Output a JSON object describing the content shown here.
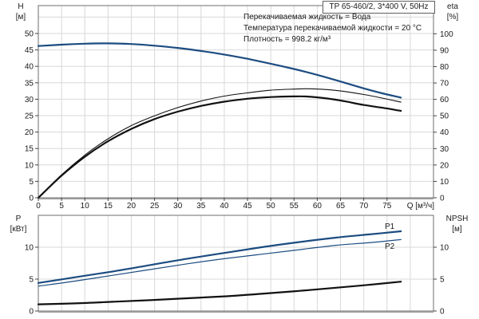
{
  "header": {
    "title": "TP 65-460/2, 3*400 V, 50Hz"
  },
  "info": {
    "line1": "Перекачиваемая жидкость = Вода",
    "line2": "Температура перекачиваемой жидкости = 20 °C",
    "line3": "Плотность = 998.2 кг/м³"
  },
  "labels": {
    "h": "H",
    "h_unit": "[м]",
    "eta": "eta",
    "eta_unit": "[%]",
    "q": "Q [м³/ч]",
    "p": "P",
    "p_unit": "[кВт]",
    "npsh": "NPSH",
    "npsh_unit": "[м]",
    "p1": "P1",
    "p2": "P2"
  },
  "colors": {
    "curve_blue": "#1c4c80",
    "curve_black": "#111111",
    "grid": "#d8d8d8",
    "border": "#6e6e6e",
    "axis_heavy": "#9a9a9a",
    "tick": "#444444",
    "text": "#1a1a1a"
  },
  "chart_data": [
    {
      "type": "line",
      "title": "TP 65-460/2, 3*400 V, 50Hz",
      "xlabel": "Q [м³/ч]",
      "ylabel_left": "H [м]",
      "ylabel_right": "eta [%]",
      "xlim": [
        0,
        85
      ],
      "ylim_left": [
        0,
        58.5
      ],
      "ylim_right": [
        0,
        117.2
      ],
      "grid": true,
      "ticks_x": [
        0,
        5,
        10,
        15,
        20,
        25,
        30,
        35,
        40,
        45,
        50,
        55,
        60,
        65,
        70,
        75
      ],
      "ticks_left": [
        0,
        5,
        10,
        15,
        20,
        25,
        30,
        35,
        40,
        45,
        50
      ],
      "ticks_right": [
        0,
        10,
        20,
        30,
        40,
        50,
        60,
        70,
        80,
        90,
        100
      ],
      "grid_x": [
        5,
        10,
        15,
        20,
        25,
        30,
        35,
        40,
        45,
        50,
        55,
        60,
        65,
        70,
        75,
        80
      ],
      "grid_y_left": [
        5,
        10,
        15,
        20,
        25,
        30,
        35,
        40,
        45,
        50,
        55
      ],
      "series": [
        {
          "name": "H",
          "axis": "left",
          "color": "blue",
          "width": 2.2,
          "points": [
            [
              0,
              46.2
            ],
            [
              5,
              46.6
            ],
            [
              10,
              46.9
            ],
            [
              15,
              47.0
            ],
            [
              20,
              46.8
            ],
            [
              25,
              46.3
            ],
            [
              30,
              45.6
            ],
            [
              35,
              44.7
            ],
            [
              40,
              43.6
            ],
            [
              45,
              42.3
            ],
            [
              50,
              40.8
            ],
            [
              55,
              39.2
            ],
            [
              60,
              37.4
            ],
            [
              65,
              35.4
            ],
            [
              70,
              33.3
            ],
            [
              74,
              31.8
            ],
            [
              78,
              30.5
            ]
          ]
        },
        {
          "name": "eta-thin",
          "axis": "right",
          "color": "black",
          "width": 1.1,
          "points": [
            [
              0,
              0
            ],
            [
              5,
              14
            ],
            [
              10,
              26
            ],
            [
              15,
              36
            ],
            [
              20,
              44
            ],
            [
              25,
              50
            ],
            [
              30,
              55
            ],
            [
              35,
              59
            ],
            [
              40,
              62
            ],
            [
              45,
              64
            ],
            [
              50,
              65.6
            ],
            [
              55,
              66.3
            ],
            [
              58,
              66.5
            ],
            [
              62,
              66
            ],
            [
              66,
              64.8
            ],
            [
              70,
              63
            ],
            [
              74,
              60.8
            ],
            [
              78,
              58.3
            ]
          ]
        },
        {
          "name": "eta-thick",
          "axis": "right",
          "color": "black",
          "width": 2.2,
          "points": [
            [
              0,
              0
            ],
            [
              5,
              13.5
            ],
            [
              10,
              25
            ],
            [
              15,
              34.5
            ],
            [
              20,
              42
            ],
            [
              25,
              48
            ],
            [
              30,
              52.5
            ],
            [
              35,
              56
            ],
            [
              40,
              58.6
            ],
            [
              45,
              60.4
            ],
            [
              50,
              61.4
            ],
            [
              55,
              61.8
            ],
            [
              58,
              61.7
            ],
            [
              62,
              60.6
            ],
            [
              66,
              58.8
            ],
            [
              70,
              56.6
            ],
            [
              74,
              54.9
            ],
            [
              78,
              53
            ]
          ]
        }
      ]
    },
    {
      "type": "line",
      "title": "",
      "xlabel": "",
      "ylabel_left": "P [кВт]",
      "ylabel_right": "NPSH [м]",
      "xlim": [
        0,
        85
      ],
      "ylim_left": [
        0,
        15
      ],
      "ylim_right": [
        0,
        15
      ],
      "grid": true,
      "ticks_x": [],
      "ticks_left": [
        0,
        5,
        10
      ],
      "ticks_right": [
        0,
        5,
        10
      ],
      "grid_x": [
        5,
        10,
        15,
        20,
        25,
        30,
        35,
        40,
        45,
        50,
        55,
        60,
        65,
        70,
        75,
        80
      ],
      "grid_y_left": [
        5,
        10
      ],
      "series": [
        {
          "name": "P1",
          "axis": "left",
          "color": "blue",
          "width": 2.2,
          "points": [
            [
              0,
              4.4
            ],
            [
              8,
              5.3
            ],
            [
              16,
              6.2
            ],
            [
              24,
              7.2
            ],
            [
              32,
              8.2
            ],
            [
              40,
              9.1
            ],
            [
              48,
              10.0
            ],
            [
              56,
              10.8
            ],
            [
              64,
              11.5
            ],
            [
              71,
              12.0
            ],
            [
              78,
              12.5
            ]
          ]
        },
        {
          "name": "P2",
          "axis": "left",
          "color": "blue",
          "width": 1.2,
          "points": [
            [
              0,
              3.9
            ],
            [
              8,
              4.7
            ],
            [
              16,
              5.6
            ],
            [
              24,
              6.5
            ],
            [
              32,
              7.4
            ],
            [
              40,
              8.2
            ],
            [
              48,
              8.9
            ],
            [
              56,
              9.6
            ],
            [
              64,
              10.3
            ],
            [
              71,
              10.7
            ],
            [
              78,
              11.2
            ]
          ]
        },
        {
          "name": "NPSH",
          "axis": "right",
          "color": "black",
          "width": 2.2,
          "points": [
            [
              0,
              1.05
            ],
            [
              8,
              1.2
            ],
            [
              16,
              1.45
            ],
            [
              24,
              1.7
            ],
            [
              32,
              2.0
            ],
            [
              40,
              2.3
            ],
            [
              48,
              2.7
            ],
            [
              56,
              3.15
            ],
            [
              64,
              3.65
            ],
            [
              71,
              4.1
            ],
            [
              78,
              4.6
            ]
          ]
        }
      ]
    }
  ]
}
